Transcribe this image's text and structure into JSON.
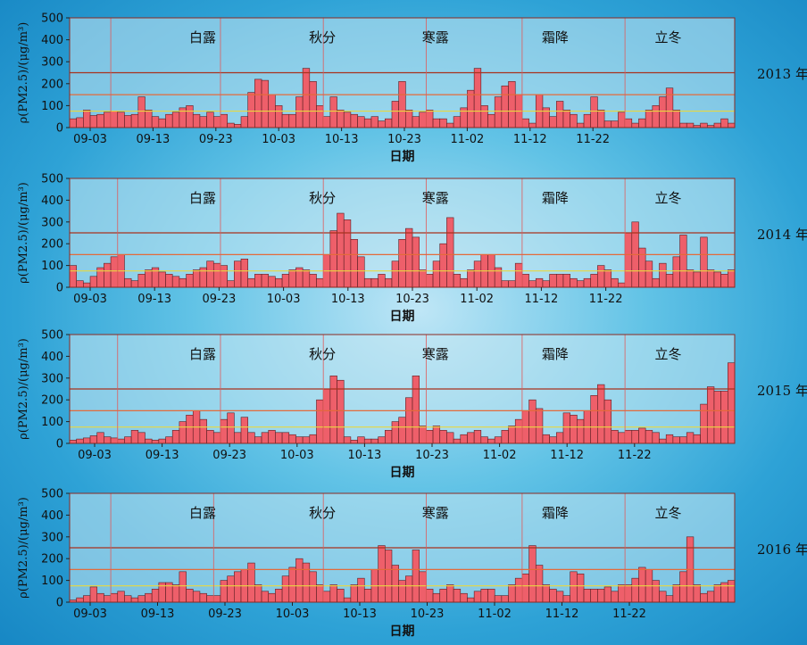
{
  "chart_data": [
    {
      "type": "bar",
      "year_label": "2013 年",
      "ylabel": "ρ(PM2.5)/(μg/m³)",
      "xlabel": "日期",
      "ylim": [
        0,
        500
      ],
      "yticks": [
        0,
        100,
        200,
        300,
        400,
        500
      ],
      "xticks": [
        "09-03",
        "09-13",
        "09-23",
        "10-03",
        "10-13",
        "10-23",
        "11-02",
        "11-12",
        "11-22"
      ],
      "solar_terms": [
        "白露",
        "秋分",
        "寒露",
        "霜降",
        "立冬"
      ],
      "reference_lines": [
        75,
        150,
        250
      ],
      "start_date": "09-01",
      "values": [
        40,
        45,
        80,
        55,
        60,
        70,
        75,
        70,
        55,
        60,
        140,
        80,
        50,
        40,
        60,
        70,
        90,
        100,
        60,
        50,
        70,
        50,
        60,
        20,
        15,
        50,
        160,
        220,
        215,
        150,
        100,
        60,
        60,
        140,
        270,
        210,
        100,
        50,
        140,
        80,
        70,
        60,
        50,
        40,
        50,
        30,
        40,
        120,
        210,
        80,
        50,
        70,
        80,
        40,
        40,
        20,
        50,
        90,
        170,
        270,
        100,
        60,
        140,
        190,
        210,
        150,
        40,
        20,
        150,
        90,
        50,
        120,
        80,
        60,
        20,
        60,
        140,
        80,
        30,
        30,
        70,
        40,
        20,
        40,
        80,
        100,
        140,
        180,
        80,
        20,
        20,
        10,
        20,
        10,
        20,
        40,
        20
      ]
    },
    {
      "type": "bar",
      "year_label": "2014 年",
      "ylabel": "ρ(PM2.5)/(μg/m³)",
      "xlabel": "日期",
      "ylim": [
        0,
        500
      ],
      "yticks": [
        0,
        100,
        200,
        300,
        400,
        500
      ],
      "xticks": [
        "09-03",
        "09-13",
        "09-23",
        "10-03",
        "10-13",
        "10-23",
        "11-02",
        "11-12",
        "11-22"
      ],
      "solar_terms": [
        "白露",
        "秋分",
        "寒露",
        "霜降",
        "立冬"
      ],
      "reference_lines": [
        75,
        150,
        250
      ],
      "start_date": "09-01",
      "values": [
        100,
        30,
        20,
        50,
        90,
        110,
        140,
        150,
        40,
        30,
        60,
        80,
        90,
        70,
        60,
        50,
        40,
        60,
        80,
        90,
        120,
        110,
        100,
        30,
        120,
        130,
        40,
        60,
        60,
        50,
        40,
        60,
        80,
        90,
        80,
        60,
        40,
        150,
        260,
        340,
        310,
        220,
        140,
        40,
        40,
        60,
        40,
        120,
        220,
        270,
        230,
        80,
        60,
        120,
        200,
        320,
        60,
        40,
        80,
        120,
        150,
        150,
        90,
        30,
        30,
        110,
        60,
        30,
        40,
        30,
        60,
        60,
        60,
        40,
        30,
        40,
        60,
        100,
        80,
        40,
        20,
        250,
        300,
        180,
        120,
        40,
        110,
        60,
        140,
        240,
        80,
        70,
        230,
        80,
        70,
        60,
        80
      ]
    },
    {
      "type": "bar",
      "year_label": "2015 年",
      "ylabel": "ρ(PM2.5)/(μg/m³)",
      "xlabel": "日期",
      "ylim": [
        0,
        500
      ],
      "yticks": [
        0,
        100,
        200,
        300,
        400,
        500
      ],
      "xticks": [
        "09-03",
        "09-13",
        "09-23",
        "10-03",
        "10-13",
        "10-23",
        "11-02",
        "11-12",
        "11-22"
      ],
      "solar_terms": [
        "白露",
        "秋分",
        "寒露",
        "霜降",
        "立冬"
      ],
      "reference_lines": [
        75,
        150,
        250
      ],
      "start_date": "09-01",
      "values": [
        15,
        20,
        25,
        35,
        50,
        30,
        25,
        20,
        30,
        60,
        50,
        20,
        15,
        20,
        30,
        60,
        100,
        130,
        150,
        110,
        60,
        50,
        110,
        140,
        50,
        120,
        50,
        30,
        50,
        60,
        50,
        50,
        40,
        30,
        30,
        40,
        200,
        250,
        310,
        290,
        30,
        15,
        30,
        20,
        20,
        30,
        60,
        100,
        120,
        210,
        310,
        80,
        60,
        80,
        60,
        50,
        20,
        40,
        50,
        60,
        30,
        20,
        30,
        60,
        80,
        110,
        150,
        200,
        160,
        40,
        30,
        50,
        140,
        130,
        110,
        150,
        220,
        270,
        200,
        60,
        50,
        60,
        60,
        70,
        60,
        50,
        20,
        40,
        30,
        30,
        50,
        40,
        180,
        260,
        240,
        240,
        370
      ]
    },
    {
      "type": "bar",
      "year_label": "2016 年",
      "ylabel": "ρ(PM2.5)/(μg/m³)",
      "xlabel": "日期",
      "ylim": [
        0,
        500
      ],
      "yticks": [
        0,
        100,
        200,
        300,
        400,
        500
      ],
      "xticks": [
        "09-03",
        "09-13",
        "09-23",
        "10-03",
        "10-13",
        "10-23",
        "11-02",
        "11-12",
        "11-22"
      ],
      "solar_terms": [
        "白露",
        "秋分",
        "寒露",
        "霜降",
        "立冬"
      ],
      "reference_lines": [
        75,
        150,
        250
      ],
      "start_date": "09-01",
      "values": [
        10,
        20,
        30,
        70,
        40,
        30,
        40,
        50,
        30,
        20,
        30,
        40,
        60,
        90,
        90,
        80,
        140,
        60,
        50,
        40,
        30,
        30,
        100,
        120,
        140,
        150,
        180,
        80,
        50,
        40,
        60,
        120,
        160,
        200,
        180,
        140,
        80,
        50,
        80,
        60,
        20,
        80,
        110,
        60,
        150,
        260,
        240,
        170,
        100,
        120,
        240,
        140,
        60,
        40,
        60,
        80,
        60,
        40,
        20,
        50,
        60,
        60,
        30,
        30,
        80,
        110,
        130,
        260,
        170,
        80,
        60,
        50,
        30,
        140,
        130,
        60,
        60,
        60,
        70,
        50,
        80,
        80,
        110,
        160,
        150,
        100,
        50,
        30,
        80,
        140,
        300,
        80,
        40,
        50,
        80,
        90,
        100
      ]
    }
  ]
}
